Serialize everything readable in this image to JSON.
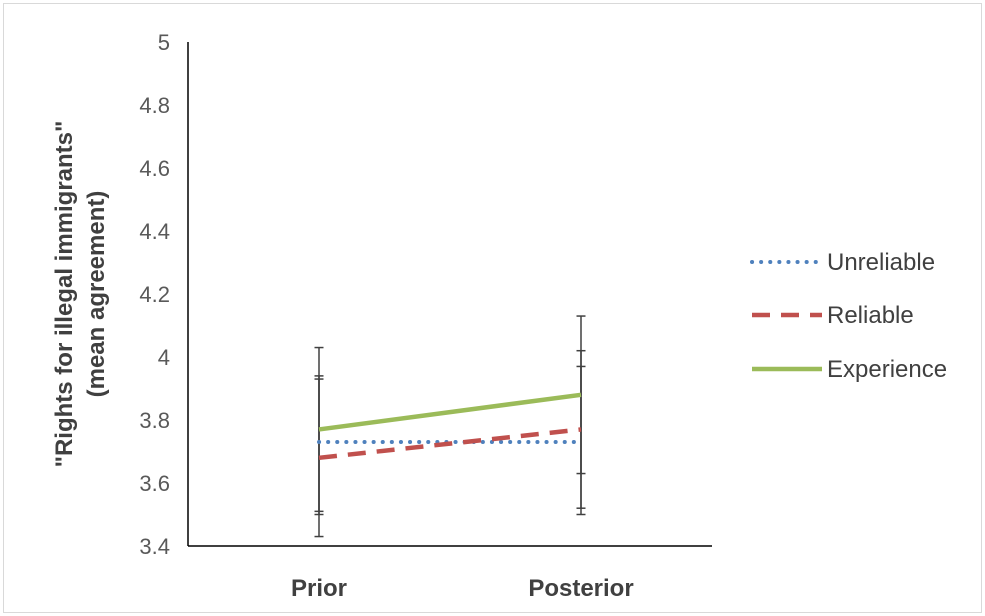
{
  "chart_data": {
    "type": "line",
    "categories": [
      "Prior",
      "Posterior"
    ],
    "ylabel_lines": [
      "\"Rights for illegal immigrants\"",
      "(mean agreement)"
    ],
    "ylim": [
      3.4,
      5
    ],
    "yticks": [
      "3.4",
      "3.6",
      "3.8",
      "4",
      "4.2",
      "4.4",
      "4.6",
      "4.8",
      "5"
    ],
    "grid": false,
    "legend_position": "right",
    "series": [
      {
        "name": "Unreliable",
        "values": [
          3.73,
          3.73
        ],
        "error_low": [
          3.51,
          3.5
        ],
        "error_high": [
          3.94,
          3.97
        ],
        "color": "#4f81bd",
        "dash": "dotted"
      },
      {
        "name": "Reliable",
        "values": [
          3.68,
          3.77
        ],
        "error_low": [
          3.43,
          3.52
        ],
        "error_high": [
          3.93,
          4.02
        ],
        "color": "#c0504d",
        "dash": "dashed"
      },
      {
        "name": "Experience",
        "values": [
          3.77,
          3.88
        ],
        "error_low": [
          3.5,
          3.63
        ],
        "error_high": [
          4.03,
          4.13
        ],
        "color": "#9bbb59",
        "dash": "solid"
      }
    ],
    "errorbar_color": "#404040"
  }
}
